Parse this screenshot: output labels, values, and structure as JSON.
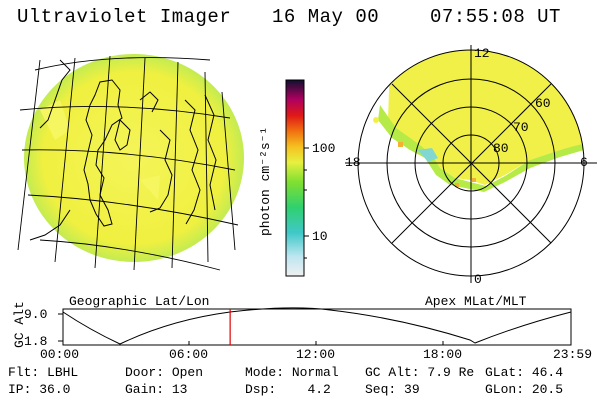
{
  "header": {
    "title": "Ultraviolet Imager",
    "date": "16 May 00",
    "time": "07:55:08 UT"
  },
  "colorbar": {
    "unit_label": "photon cm⁻²s⁻¹",
    "ticks": [
      "100",
      "10"
    ]
  },
  "polar": {
    "labels": {
      "top": "12",
      "bottom": "0",
      "left": "18",
      "right": "6"
    },
    "lat_labels": [
      "60",
      "70",
      "80"
    ]
  },
  "panels": {
    "left_caption": "Geographic Lat/Lon",
    "right_caption": "Apex MLat/MLT"
  },
  "timeline": {
    "ylabel": "GC Alt",
    "y_ticks": [
      "9.0",
      "1.8"
    ],
    "x_ticks": [
      "00:00",
      "06:00",
      "12:00",
      "18:00",
      "23:59"
    ],
    "current_time_fraction": 0.329
  },
  "info": {
    "flt": {
      "label": "Flt:",
      "value": "LBHL"
    },
    "ip": {
      "label": "IP:",
      "value": "36.0"
    },
    "door": {
      "label": "Door:",
      "value": "Open"
    },
    "gain": {
      "label": "Gain:",
      "value": "13"
    },
    "mode": {
      "label": "Mode:",
      "value": "Normal"
    },
    "dsp": {
      "label": "Dsp:",
      "value": "4.2"
    },
    "gcalt": {
      "label": "GC Alt:",
      "value": "7.9 Re"
    },
    "seq": {
      "label": "Seq:",
      "value": "39"
    },
    "glat": {
      "label": "GLat:",
      "value": "46.4"
    },
    "glon": {
      "label": "GLon:",
      "value": "20.5"
    }
  },
  "colors": {
    "aurora_yellow": "#f2f24a",
    "aurora_green": "#b8ec4a",
    "edge_cyan": "#66d4d8",
    "marker_red": "#e00000"
  }
}
